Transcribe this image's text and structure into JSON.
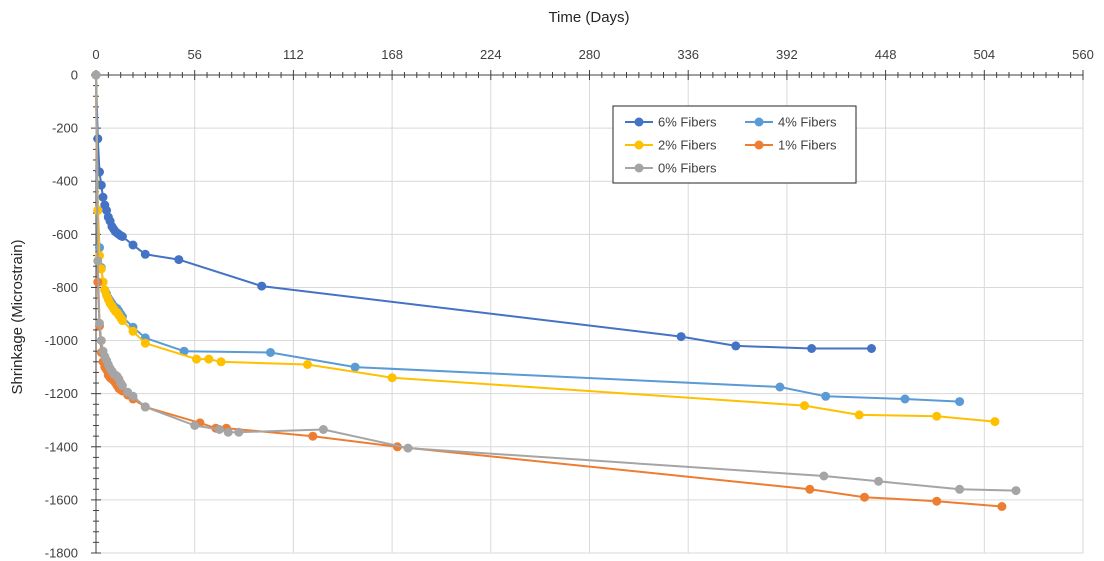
{
  "chart_data": {
    "type": "line",
    "xlabel": "Time (Days)",
    "ylabel": "Shrinkage (Microstrain)",
    "xlim": [
      0,
      560
    ],
    "ylim": [
      -1800,
      0
    ],
    "x_ticks": [
      "0",
      "56",
      "112",
      "168",
      "224",
      "280",
      "336",
      "392",
      "448",
      "504",
      "560"
    ],
    "y_ticks": [
      "0",
      "-200",
      "-400",
      "-600",
      "-800",
      "-1000",
      "-1200",
      "-1400",
      "-1600",
      "-1800"
    ],
    "x_axis_position": "top",
    "grid": true,
    "legend_position": "top-right",
    "series": [
      {
        "name": "6% Fibers",
        "color": "#4472c4",
        "x": [
          0,
          1,
          2,
          3,
          4,
          5,
          6,
          7,
          8,
          9,
          10,
          11,
          12,
          13,
          14,
          15,
          21,
          28,
          47,
          94,
          332,
          363,
          406,
          440
        ],
        "y": [
          0,
          -240,
          -365,
          -415,
          -460,
          -490,
          -510,
          -535,
          -550,
          -570,
          -580,
          -590,
          -595,
          -600,
          -605,
          -608,
          -640,
          -675,
          -695,
          -795,
          -985,
          -1020,
          -1030,
          -1030
        ]
      },
      {
        "name": "4% Fibers",
        "color": "#5b9bd5",
        "x": [
          0,
          1,
          2,
          3,
          4,
          5,
          6,
          7,
          8,
          9,
          10,
          11,
          12,
          13,
          14,
          15,
          21,
          28,
          50,
          99,
          147,
          388,
          414,
          459,
          490
        ],
        "y": [
          0,
          -510,
          -650,
          -725,
          -780,
          -810,
          -825,
          -840,
          -850,
          -860,
          -870,
          -875,
          -880,
          -890,
          -900,
          -910,
          -950,
          -990,
          -1040,
          -1045,
          -1100,
          -1175,
          -1210,
          -1220,
          -1230
        ]
      },
      {
        "name": "2% Fibers",
        "color": "#ffc000",
        "x": [
          0,
          1,
          2,
          3,
          4,
          5,
          6,
          7,
          8,
          9,
          10,
          11,
          12,
          13,
          14,
          15,
          21,
          28,
          57,
          64,
          71,
          120,
          168,
          402,
          433,
          477,
          510
        ],
        "y": [
          0,
          -510,
          -680,
          -730,
          -780,
          -810,
          -830,
          -845,
          -860,
          -870,
          -880,
          -890,
          -895,
          -905,
          -915,
          -925,
          -965,
          -1010,
          -1070,
          -1070,
          -1080,
          -1090,
          -1140,
          -1245,
          -1280,
          -1285,
          -1305
        ]
      },
      {
        "name": "1% Fibers",
        "color": "#ed7d31",
        "x": [
          0,
          1,
          2,
          3,
          4,
          5,
          6,
          7,
          8,
          9,
          10,
          11,
          12,
          13,
          14,
          15,
          18,
          21,
          28,
          59,
          68,
          74,
          123,
          171,
          405,
          436,
          477,
          514
        ],
        "y": [
          0,
          -780,
          -945,
          -1045,
          -1080,
          -1100,
          -1110,
          -1130,
          -1140,
          -1145,
          -1150,
          -1160,
          -1170,
          -1180,
          -1185,
          -1190,
          -1205,
          -1220,
          -1250,
          -1310,
          -1330,
          -1330,
          -1360,
          -1400,
          -1560,
          -1590,
          -1605,
          -1625
        ]
      },
      {
        "name": "0% Fibers",
        "color": "#a5a5a5",
        "x": [
          0,
          1,
          2,
          3,
          4,
          5,
          6,
          7,
          8,
          9,
          10,
          11,
          12,
          13,
          14,
          15,
          18,
          21,
          28,
          56,
          70,
          75,
          81,
          129,
          177,
          413,
          444,
          490,
          522
        ],
        "y": [
          0,
          -700,
          -935,
          -1000,
          -1040,
          -1060,
          -1075,
          -1090,
          -1105,
          -1115,
          -1125,
          -1130,
          -1135,
          -1145,
          -1160,
          -1170,
          -1195,
          -1210,
          -1250,
          -1320,
          -1335,
          -1345,
          -1345,
          -1335,
          -1405,
          -1510,
          -1530,
          -1560,
          -1565
        ]
      }
    ]
  }
}
